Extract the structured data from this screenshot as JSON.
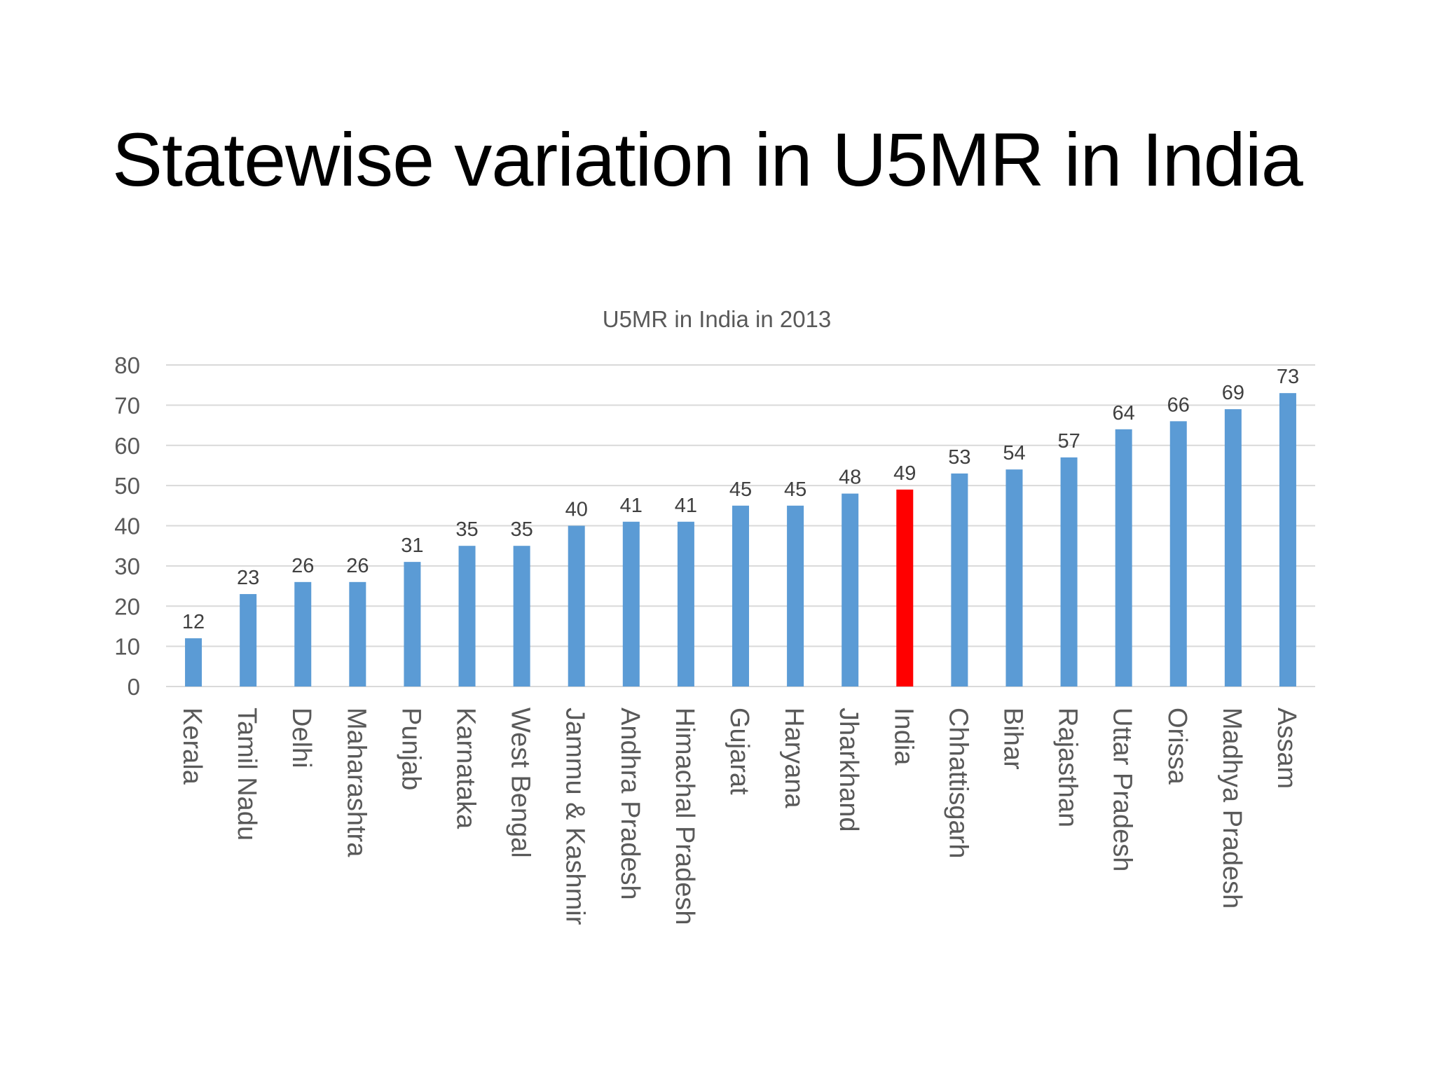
{
  "slide": {
    "title": "Statewise variation in U5MR in India"
  },
  "colors": {
    "bar": "#5b9bd5",
    "highlight_bar": "#ff0000",
    "gridline": "#d9d9d9",
    "text": "#595959",
    "label": "#404040",
    "title": "#000000"
  },
  "chart_data": {
    "type": "bar",
    "title": "U5MR in India in 2013",
    "xlabel": "",
    "ylabel": "",
    "ylim": [
      0,
      80
    ],
    "yticks": [
      0,
      10,
      20,
      30,
      40,
      50,
      60,
      70,
      80
    ],
    "grid": true,
    "legend": "none",
    "categories": [
      "Kerala",
      "Tamil Nadu",
      "Delhi",
      "Maharashtra",
      "Punjab",
      "Karnataka",
      "West Bengal",
      "Jammu & Kashmir",
      "Andhra Pradesh",
      "Himachal Pradesh",
      "Gujarat",
      "Haryana",
      "Jharkhand",
      "India",
      "Chhattisgarh",
      "Bihar",
      "Rajasthan",
      "Uttar Pradesh",
      "Orissa",
      "Madhya Pradesh",
      "Assam"
    ],
    "values": [
      12,
      23,
      26,
      26,
      31,
      35,
      35,
      40,
      41,
      41,
      45,
      45,
      48,
      49,
      53,
      54,
      57,
      64,
      66,
      69,
      73
    ],
    "highlight_category": "India",
    "data_labels": true
  }
}
